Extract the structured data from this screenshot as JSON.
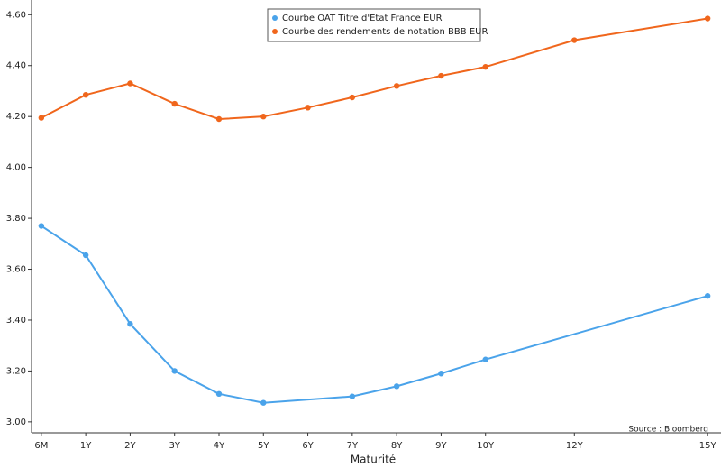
{
  "chart_data": {
    "type": "line",
    "x_label": "Maturité",
    "source": "Source : Bloomberg",
    "xlim": [
      -0.22,
      15.2
    ],
    "xticks": [
      {
        "value": 0,
        "label": "6M"
      },
      {
        "value": 1,
        "label": "1Y"
      },
      {
        "value": 2,
        "label": "2Y"
      },
      {
        "value": 3,
        "label": "3Y"
      },
      {
        "value": 4,
        "label": "4Y"
      },
      {
        "value": 5,
        "label": "5Y"
      },
      {
        "value": 6,
        "label": "6Y"
      },
      {
        "value": 7,
        "label": "7Y"
      },
      {
        "value": 8,
        "label": "8Y"
      },
      {
        "value": 9,
        "label": "9Y"
      },
      {
        "value": 10,
        "label": "10Y"
      },
      {
        "value": 12,
        "label": "12Y"
      },
      {
        "value": 15,
        "label": "15Y"
      }
    ],
    "ylim": [
      2.957,
      4.64
    ],
    "yticks": [
      {
        "value": 3,
        "label": "3.00"
      },
      {
        "value": 3.2,
        "label": "3.20"
      },
      {
        "value": 3.4,
        "label": "3.40"
      },
      {
        "value": 3.6,
        "label": "3.60"
      },
      {
        "value": 3.8,
        "label": "3.80"
      },
      {
        "value": 4,
        "label": "4.00"
      },
      {
        "value": 4.2,
        "label": "4.20"
      },
      {
        "value": 4.4,
        "label": "4.40"
      },
      {
        "value": 4.6,
        "label": "4.60"
      }
    ],
    "series": [
      {
        "name": "Courbe OAT Titre d'Etat France EUR",
        "color": "#4aa3ea",
        "x": [
          0,
          1,
          2,
          3,
          4,
          5,
          7,
          8,
          9,
          10,
          15
        ],
        "values": [
          3.77,
          3.655,
          3.385,
          3.2,
          3.11,
          3.075,
          3.1,
          3.14,
          3.19,
          3.245,
          3.495
        ]
      },
      {
        "name": "Courbe des rendements de notation BBB EUR",
        "color": "#f0661c",
        "x": [
          0,
          1,
          2,
          3,
          4,
          5,
          6,
          7,
          8,
          9,
          10,
          12,
          15
        ],
        "values": [
          4.195,
          4.285,
          4.33,
          4.25,
          4.19,
          4.2,
          4.235,
          4.275,
          4.32,
          4.36,
          4.395,
          4.5,
          4.585
        ]
      }
    ]
  }
}
